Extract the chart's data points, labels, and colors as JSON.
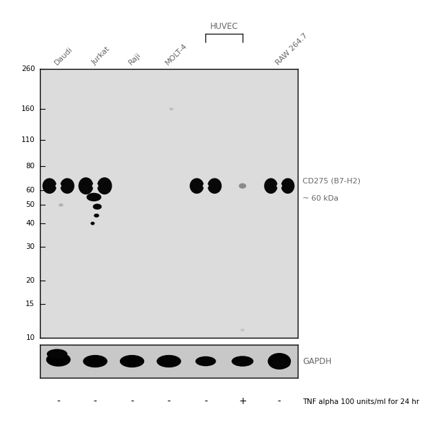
{
  "bg_color": "#e0e0e0",
  "panel_bg": "#dcdcdc",
  "gapdh_bg": "#c8c8c8",
  "border_color": "#000000",
  "mw_labels": [
    260,
    160,
    110,
    80,
    60,
    50,
    40,
    30,
    20,
    15,
    10
  ],
  "right_label_line1": "CD275 (B7-H2)",
  "right_label_line2": "~ 60 kDa",
  "gapdh_label": "GAPDH",
  "tnf_labels": [
    "-",
    "-",
    "-",
    "-",
    "-",
    "+",
    "-"
  ],
  "tnf_text": "TNF alpha 100 units/ml for 24 hr",
  "figsize": [
    6.5,
    6.31
  ],
  "dpi": 100,
  "n_lanes": 7,
  "band_color": "#080808",
  "lane_label_names": [
    "Daudi",
    "Jurkat",
    "Raji",
    "MOLT-4",
    "",
    "",
    "RAW 264.7"
  ],
  "huvec_label": "HUVEC",
  "huvec_lanes": [
    4,
    5
  ],
  "label_color": "#666666"
}
